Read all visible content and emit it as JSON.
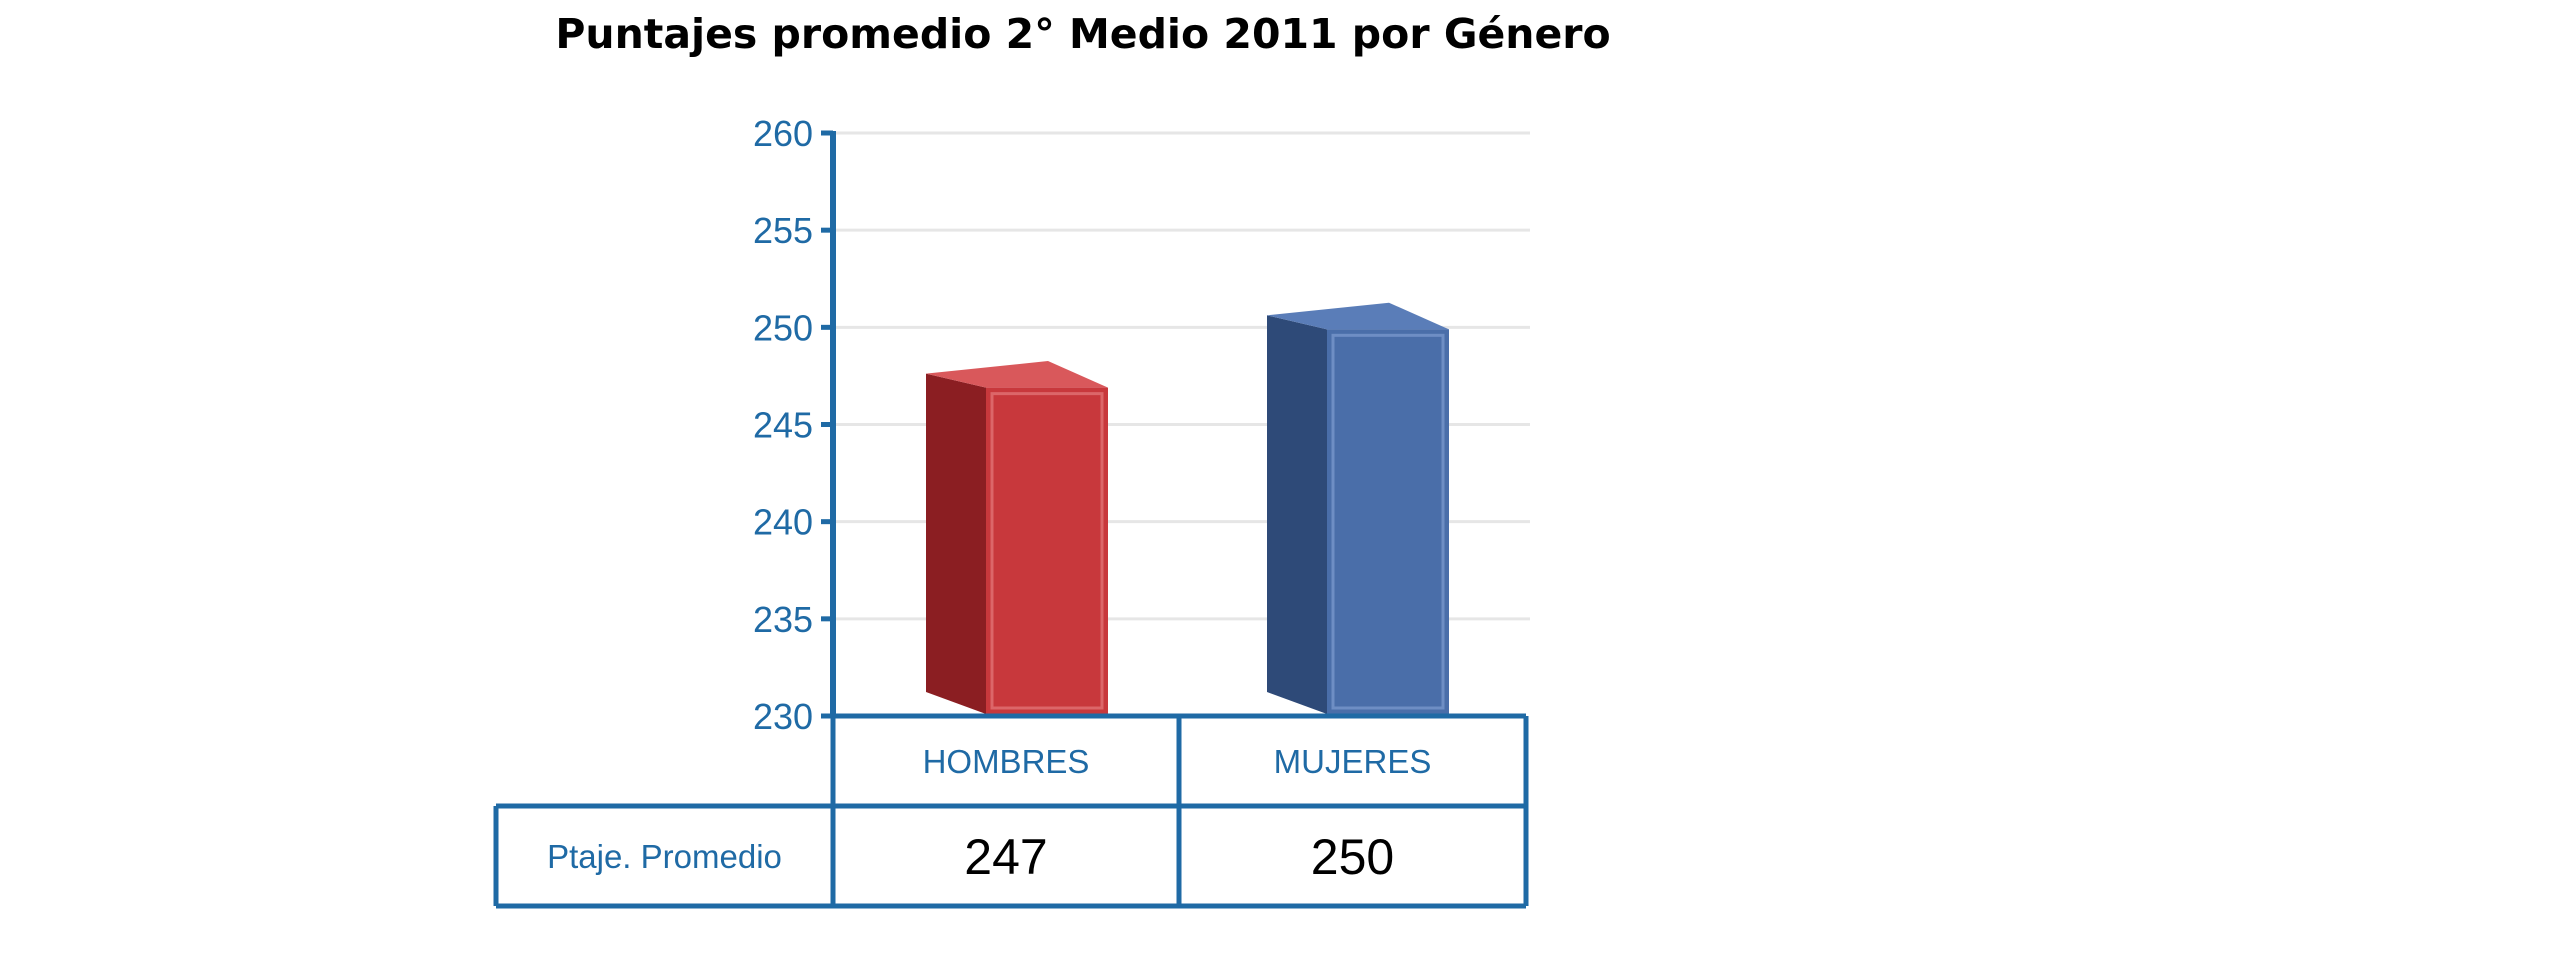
{
  "chart_data": {
    "type": "bar",
    "title": "Puntajes promedio 2° Medio 2011 por Género",
    "categories": [
      "HOMBRES",
      "MUJERES"
    ],
    "values": [
      247,
      250
    ],
    "series": [
      {
        "name": "Ptaje. Promedio",
        "values": [
          247,
          250
        ]
      }
    ],
    "bar_colors": [
      "#c8383c",
      "#4a6ea9"
    ],
    "ylim": [
      230,
      260
    ],
    "yticks": [
      260,
      255,
      250,
      245,
      240,
      235,
      230
    ],
    "grid": true,
    "data_table": {
      "row_label": "Ptaje. Promedio",
      "cells": [
        "247",
        "250"
      ]
    }
  },
  "colors": {
    "axis": "#1f6aa5",
    "grid": "#e6e6e6",
    "text": "#000000"
  }
}
